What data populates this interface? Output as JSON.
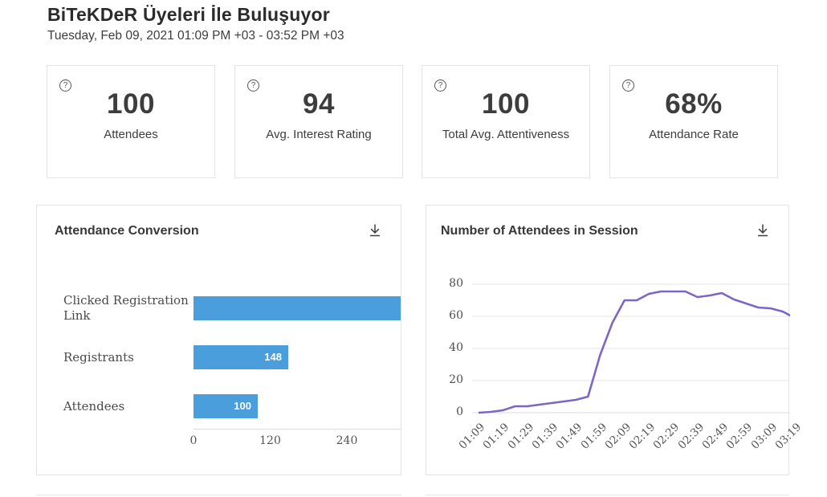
{
  "page": {
    "title": "BiTeKDeR Üyeleri İle Buluşuyor",
    "subtitle": "Tuesday, Feb 09, 2021 01:09 PM +03 - 03:52 PM +03"
  },
  "stats": [
    {
      "value": "100",
      "label": "Attendees"
    },
    {
      "value": "94",
      "label": "Avg. Interest Rating"
    },
    {
      "value": "100",
      "label": "Total Avg. Attentiveness"
    },
    {
      "value": "68%",
      "label": "Attendance Rate"
    }
  ],
  "icons": {
    "help": "circled-question-mark",
    "help_glyph": "?",
    "download": "down-arrow-with-underline"
  },
  "colors": {
    "bar_blue": "#4a9edb",
    "line_purple": "#7c66c6",
    "card_border": "#e4e4e4",
    "grid_line": "#e9e9e9",
    "zero_grid_line": "#dfe2ec",
    "axis_text": "#555555"
  },
  "chart_data": [
    {
      "type": "bar",
      "title": "Attendance Conversion",
      "orientation": "horizontal",
      "categories": [
        "Clicked Registration Link",
        "Registrants",
        "Attendees"
      ],
      "values": [
        null,
        148,
        100
      ],
      "value_labels": [
        "",
        "148",
        "100"
      ],
      "first_bar_clipped_at_card_edge": true,
      "xticks": [
        0,
        120,
        240
      ],
      "xlim": [
        0,
        328
      ],
      "grid": false
    },
    {
      "type": "line",
      "title": "Number of Attendees in Session",
      "x": [
        "01:09",
        "01:14",
        "01:19",
        "01:24",
        "01:29",
        "01:34",
        "01:39",
        "01:44",
        "01:49",
        "01:54",
        "01:59",
        "02:04",
        "02:09",
        "02:14",
        "02:19",
        "02:24",
        "02:29",
        "02:34",
        "02:39",
        "02:44",
        "02:49",
        "02:54",
        "02:59",
        "03:04",
        "03:09",
        "03:14",
        "03:19"
      ],
      "values": [
        0,
        0.5,
        1.5,
        4,
        4,
        5,
        6,
        7,
        8,
        10,
        36,
        56,
        70,
        70,
        74,
        75.5,
        75.5,
        75.5,
        72,
        73,
        74.5,
        70.5,
        68,
        65.5,
        65,
        63,
        59
      ],
      "xtick_labels": [
        "01:09",
        "01:19",
        "01:29",
        "01:39",
        "01:49",
        "01:59",
        "02:09",
        "02:19",
        "02:29",
        "02:39",
        "02:49",
        "02:59",
        "03:09",
        "03:19"
      ],
      "yticks": [
        0,
        20,
        40,
        60,
        80
      ],
      "ylim": [
        0,
        85
      ],
      "grid": true,
      "legend": "none",
      "right_edge_clipped": true
    }
  ]
}
